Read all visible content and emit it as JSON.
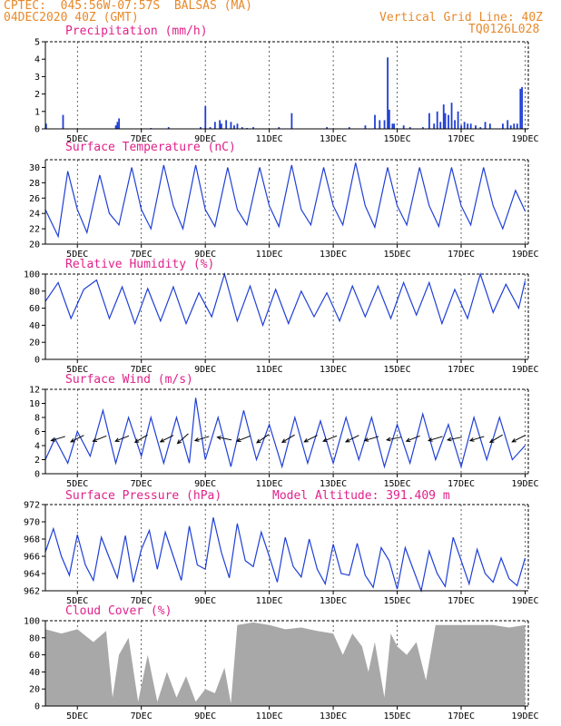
{
  "header": {
    "line1": "CPTEC:  045:56W-07:57S  BALSAS (MA)",
    "line2": "04DEC2020 40Z (GMT)",
    "grid_note": "Vertical Grid Line: 40Z",
    "code": "TQ0126L028"
  },
  "colors": {
    "header": "#e8892a",
    "title": "#e0218a",
    "line": "#1f3fd6",
    "bar": "#1f3fd6",
    "cloud": "#a8a8a8",
    "frame": "#000000"
  },
  "model_altitude": "Model Altitude: 391.409 m",
  "chart_data": [
    {
      "type": "bar",
      "title": "Precipitation (mm/h)",
      "ylim": [
        0,
        5
      ],
      "yticks": [
        0,
        1,
        2,
        3,
        4,
        5
      ],
      "xticks": [
        "5DEC",
        "7DEC",
        "9DEC",
        "11DEC",
        "13DEC",
        "15DEC",
        "17DEC",
        "19DEC"
      ],
      "x_days": [
        4.02,
        4.55,
        6.2,
        6.25,
        6.3,
        7.3,
        7.85,
        8.85,
        9.0,
        9.15,
        9.3,
        9.45,
        9.5,
        9.65,
        9.8,
        9.9,
        10.0,
        10.15,
        10.3,
        10.5,
        11.3,
        11.7,
        12.8,
        13.5,
        14.0,
        14.3,
        14.45,
        14.6,
        14.7,
        14.75,
        14.85,
        14.9,
        15.2,
        15.4,
        15.8,
        16.0,
        16.15,
        16.25,
        16.35,
        16.45,
        16.5,
        16.6,
        16.7,
        16.8,
        16.9,
        17.0,
        17.1,
        17.2,
        17.3,
        17.45,
        17.6,
        17.75,
        17.9,
        18.3,
        18.45,
        18.55,
        18.65,
        18.75,
        18.85,
        18.9
      ],
      "values": [
        0.3,
        0.8,
        0.2,
        0.4,
        0.6,
        0.05,
        0.1,
        0.1,
        1.3,
        0.1,
        0.4,
        0.5,
        0.3,
        0.5,
        0.4,
        0.2,
        0.3,
        0.1,
        0.05,
        0.1,
        0.1,
        0.9,
        0.1,
        0.1,
        0.2,
        0.8,
        0.5,
        0.5,
        4.1,
        1.1,
        0.3,
        0.3,
        0.2,
        0.1,
        0.1,
        0.9,
        0.3,
        1.0,
        0.4,
        1.4,
        0.9,
        0.8,
        1.5,
        0.5,
        1.0,
        0.2,
        0.4,
        0.3,
        0.3,
        0.2,
        0.1,
        0.4,
        0.3,
        0.3,
        0.5,
        0.2,
        0.3,
        0.3,
        2.3,
        2.4
      ]
    },
    {
      "type": "line",
      "title": "Surface Temperature (nC)",
      "ylim": [
        20,
        31
      ],
      "yticks": [
        20,
        22,
        24,
        26,
        28,
        30
      ],
      "xticks": [
        "5DEC",
        "7DEC",
        "9DEC",
        "11DEC",
        "13DEC",
        "15DEC",
        "17DEC",
        "19DEC"
      ],
      "x_days": [
        4.0,
        4.4,
        4.7,
        5.0,
        5.3,
        5.7,
        6.0,
        6.3,
        6.7,
        7.0,
        7.3,
        7.7,
        8.0,
        8.3,
        8.7,
        9.0,
        9.3,
        9.7,
        10.0,
        10.3,
        10.7,
        11.0,
        11.3,
        11.7,
        12.0,
        12.3,
        12.7,
        13.0,
        13.3,
        13.7,
        14.0,
        14.3,
        14.7,
        15.0,
        15.3,
        15.7,
        16.0,
        16.3,
        16.7,
        17.0,
        17.3,
        17.7,
        18.0,
        18.3,
        18.7,
        19.0
      ],
      "values": [
        24.5,
        21.0,
        29.5,
        24.5,
        21.5,
        29.0,
        24.0,
        22.5,
        30.0,
        24.5,
        22.0,
        30.3,
        25.0,
        22.0,
        30.3,
        24.5,
        22.3,
        30.0,
        24.5,
        22.5,
        30.0,
        25.0,
        22.3,
        30.3,
        24.5,
        22.5,
        30.0,
        25.0,
        22.5,
        30.6,
        25.0,
        22.2,
        30.0,
        25.0,
        22.5,
        30.0,
        25.0,
        22.3,
        30.0,
        25.0,
        22.5,
        30.0,
        25.0,
        22.0,
        27.0,
        24.3
      ]
    },
    {
      "type": "line",
      "title": "Relative Humidity (%)",
      "ylim": [
        0,
        100
      ],
      "yticks": [
        0,
        20,
        40,
        60,
        80,
        100
      ],
      "xticks": [
        "5DEC",
        "7DEC",
        "9DEC",
        "11DEC",
        "13DEC",
        "15DEC",
        "17DEC",
        "19DEC"
      ],
      "x_days": [
        4.0,
        4.4,
        4.8,
        5.2,
        5.6,
        6.0,
        6.4,
        6.8,
        7.2,
        7.6,
        8.0,
        8.4,
        8.8,
        9.2,
        9.6,
        10.0,
        10.4,
        10.8,
        11.2,
        11.6,
        12.0,
        12.4,
        12.8,
        13.2,
        13.6,
        14.0,
        14.4,
        14.8,
        15.2,
        15.6,
        16.0,
        16.4,
        16.8,
        17.2,
        17.6,
        18.0,
        18.4,
        18.8,
        19.0
      ],
      "values": [
        68,
        90,
        48,
        82,
        93,
        48,
        85,
        42,
        83,
        45,
        85,
        42,
        78,
        50,
        100,
        45,
        86,
        40,
        82,
        42,
        80,
        50,
        78,
        45,
        86,
        50,
        86,
        48,
        90,
        52,
        90,
        42,
        82,
        48,
        100,
        55,
        88,
        60,
        92
      ]
    },
    {
      "type": "line",
      "title": "Surface Wind (m/s)",
      "ylim": [
        0,
        12
      ],
      "yticks": [
        0,
        2,
        4,
        6,
        8,
        10,
        12
      ],
      "xticks": [
        "5DEC",
        "7DEC",
        "9DEC",
        "11DEC",
        "13DEC",
        "15DEC",
        "17DEC",
        "19DEC"
      ],
      "x_days": [
        4.0,
        4.3,
        4.7,
        5.0,
        5.4,
        5.8,
        6.2,
        6.6,
        7.0,
        7.3,
        7.7,
        8.1,
        8.5,
        8.7,
        9.0,
        9.4,
        9.8,
        10.2,
        10.6,
        11.0,
        11.4,
        11.8,
        12.2,
        12.6,
        13.0,
        13.4,
        13.8,
        14.2,
        14.6,
        15.0,
        15.4,
        15.8,
        16.2,
        16.6,
        17.0,
        17.4,
        17.8,
        18.2,
        18.6,
        19.0
      ],
      "values": [
        2.0,
        5.0,
        1.5,
        6.0,
        2.5,
        9.0,
        1.5,
        8.0,
        2.5,
        8.0,
        1.5,
        8.0,
        1.5,
        10.8,
        2.0,
        8.0,
        1.0,
        9.0,
        2.0,
        7.0,
        1.0,
        8.0,
        1.5,
        7.5,
        1.5,
        8.0,
        2.0,
        8.0,
        1.0,
        7.0,
        1.5,
        8.5,
        2.0,
        7.0,
        1.0,
        8.0,
        2.0,
        8.0,
        2.0,
        4.0
      ],
      "arrows": [
        {
          "x": 4.4,
          "u": -1.0,
          "v": -0.3
        },
        {
          "x": 5.0,
          "u": -1.0,
          "v": -0.5
        },
        {
          "x": 5.7,
          "u": -1.0,
          "v": -0.4
        },
        {
          "x": 6.4,
          "u": -1.0,
          "v": -0.4
        },
        {
          "x": 7.0,
          "u": -1.0,
          "v": -0.6
        },
        {
          "x": 7.8,
          "u": -1.0,
          "v": -0.5
        },
        {
          "x": 8.3,
          "u": -1.0,
          "v": -0.9
        },
        {
          "x": 8.9,
          "u": -1.0,
          "v": -0.3
        },
        {
          "x": 9.6,
          "u": -1.0,
          "v": 0.2
        },
        {
          "x": 10.2,
          "u": -1.0,
          "v": -0.4
        },
        {
          "x": 10.8,
          "u": -1.0,
          "v": -0.7
        },
        {
          "x": 11.6,
          "u": -1.0,
          "v": -0.6
        },
        {
          "x": 12.3,
          "u": -1.0,
          "v": -0.5
        },
        {
          "x": 12.9,
          "u": -1.0,
          "v": -0.4
        },
        {
          "x": 13.6,
          "u": -1.0,
          "v": -0.5
        },
        {
          "x": 14.2,
          "u": -1.0,
          "v": -0.3
        },
        {
          "x": 14.9,
          "u": -1.0,
          "v": -0.2
        },
        {
          "x": 15.5,
          "u": -1.0,
          "v": -0.4
        },
        {
          "x": 16.2,
          "u": -1.0,
          "v": -0.3
        },
        {
          "x": 16.8,
          "u": -1.0,
          "v": -0.2
        },
        {
          "x": 17.5,
          "u": -1.0,
          "v": -0.3
        },
        {
          "x": 18.1,
          "u": -1.0,
          "v": -0.6
        },
        {
          "x": 18.8,
          "u": -1.0,
          "v": -0.5
        }
      ]
    },
    {
      "type": "line",
      "title": "Surface Pressure (hPa)",
      "ylim": [
        962,
        972
      ],
      "yticks": [
        962,
        964,
        966,
        968,
        970,
        972
      ],
      "xticks": [
        "5DEC",
        "7DEC",
        "9DEC",
        "11DEC",
        "13DEC",
        "15DEC",
        "17DEC",
        "19DEC"
      ],
      "x_days": [
        4.0,
        4.25,
        4.5,
        4.75,
        5.0,
        5.25,
        5.5,
        5.75,
        6.0,
        6.25,
        6.5,
        6.75,
        7.0,
        7.25,
        7.5,
        7.75,
        8.0,
        8.25,
        8.5,
        8.75,
        9.0,
        9.25,
        9.5,
        9.75,
        10.0,
        10.25,
        10.5,
        10.75,
        11.0,
        11.25,
        11.5,
        11.75,
        12.0,
        12.25,
        12.5,
        12.75,
        13.0,
        13.25,
        13.5,
        13.75,
        14.0,
        14.25,
        14.5,
        14.75,
        15.0,
        15.25,
        15.5,
        15.75,
        16.0,
        16.25,
        16.5,
        16.75,
        17.0,
        17.25,
        17.5,
        17.75,
        18.0,
        18.25,
        18.5,
        18.75,
        19.0
      ],
      "values": [
        966.5,
        969.2,
        966.0,
        963.8,
        968.5,
        965.0,
        963.2,
        968.2,
        965.8,
        963.5,
        968.4,
        963.0,
        966.8,
        969.0,
        964.5,
        968.8,
        966.0,
        963.2,
        969.5,
        965.0,
        964.5,
        970.5,
        966.5,
        963.5,
        969.8,
        965.5,
        964.8,
        968.8,
        966.0,
        963.0,
        968.2,
        964.8,
        963.6,
        968.0,
        964.5,
        962.8,
        967.4,
        964.0,
        963.8,
        967.5,
        963.8,
        962.4,
        967.0,
        965.5,
        962.2,
        967.0,
        964.5,
        962.0,
        966.6,
        964.0,
        962.5,
        968.2,
        965.5,
        962.8,
        966.8,
        964.0,
        963.0,
        965.8,
        963.4,
        962.6,
        965.8
      ]
    },
    {
      "type": "area",
      "title": "Cloud Cover (%)",
      "ylim": [
        0,
        100
      ],
      "yticks": [
        0,
        20,
        40,
        60,
        80,
        100
      ],
      "xticks": [
        "5DEC",
        "7DEC",
        "9DEC",
        "11DEC",
        "13DEC",
        "15DEC",
        "17DEC",
        "19DEC"
      ],
      "x_days": [
        4.0,
        4.5,
        5.0,
        5.5,
        5.9,
        6.1,
        6.3,
        6.6,
        6.9,
        7.2,
        7.5,
        7.8,
        8.1,
        8.4,
        8.7,
        9.0,
        9.3,
        9.6,
        9.8,
        10.0,
        10.5,
        11.0,
        11.5,
        12.0,
        12.5,
        13.0,
        13.3,
        13.6,
        13.9,
        14.1,
        14.3,
        14.6,
        14.8,
        15.0,
        15.3,
        15.6,
        15.9,
        16.2,
        16.5,
        17.0,
        17.5,
        18.0,
        18.5,
        19.0
      ],
      "values": [
        90,
        85,
        90,
        75,
        88,
        10,
        60,
        80,
        5,
        60,
        5,
        40,
        10,
        35,
        5,
        20,
        15,
        45,
        3,
        95,
        98,
        95,
        90,
        92,
        88,
        85,
        60,
        85,
        70,
        40,
        75,
        10,
        85,
        70,
        60,
        75,
        30,
        95,
        95,
        95,
        95,
        95,
        92,
        95
      ]
    }
  ]
}
